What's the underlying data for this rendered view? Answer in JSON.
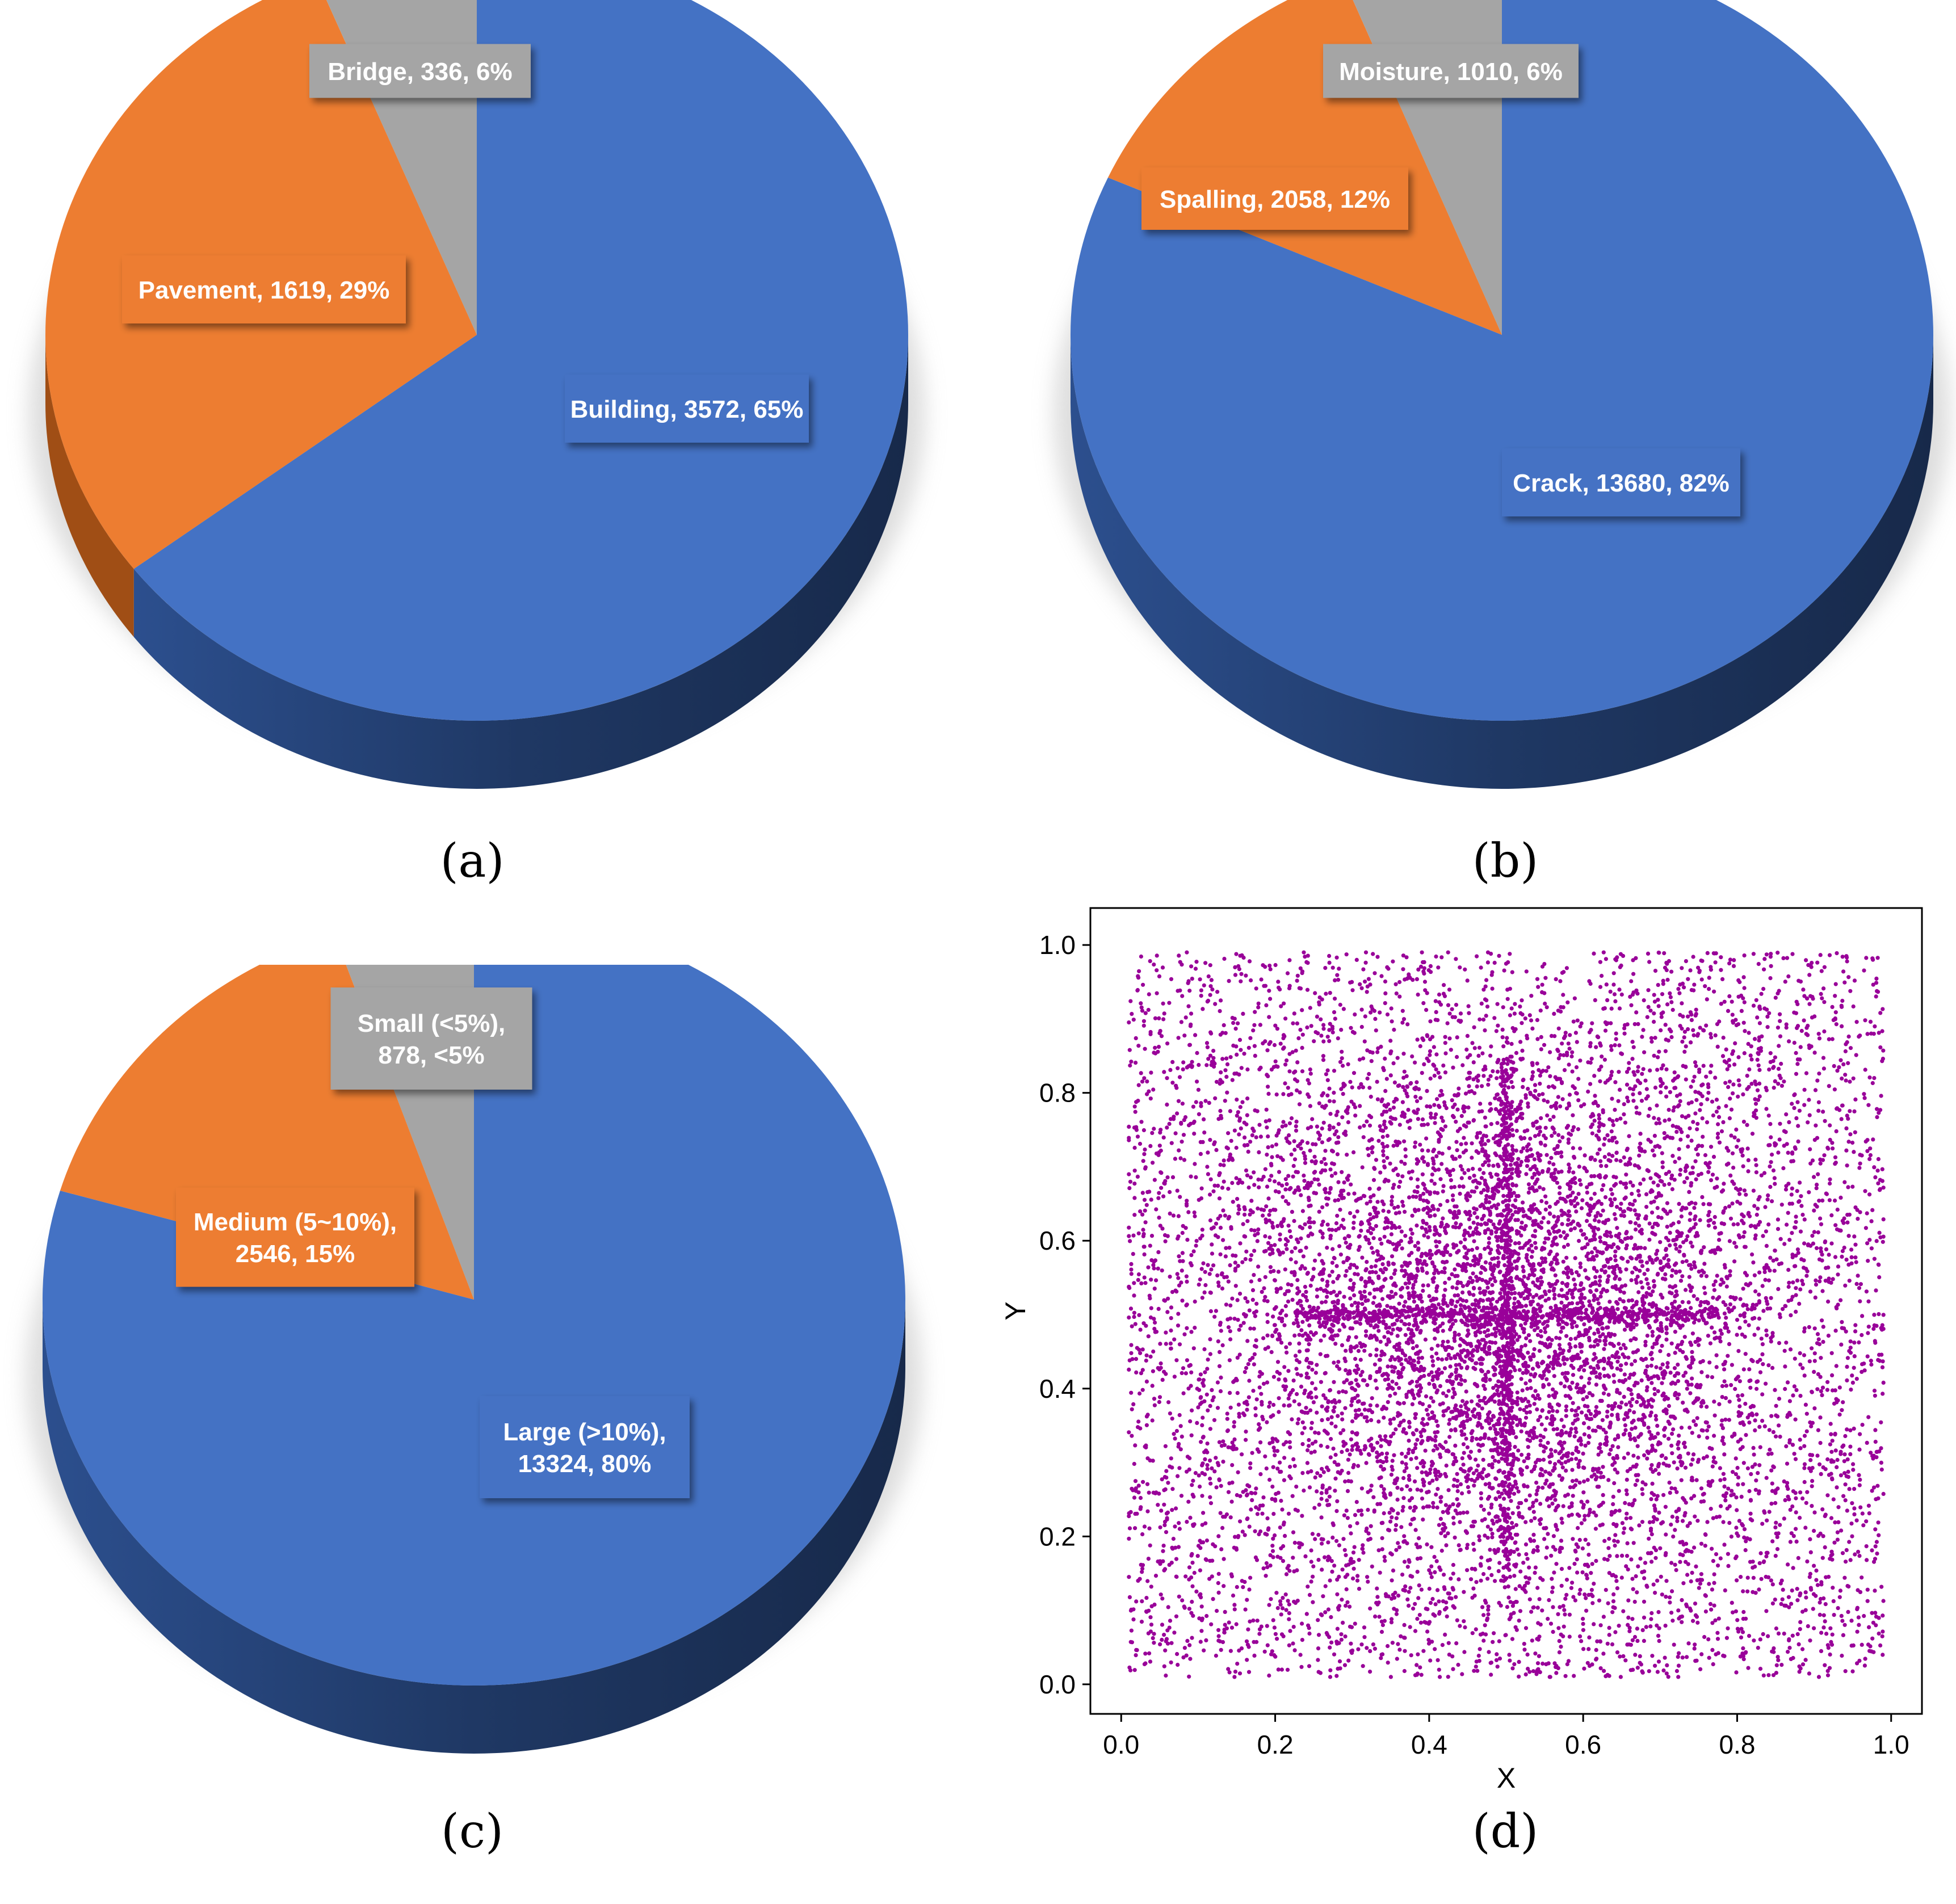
{
  "colors": {
    "blue": "#4472C4",
    "blue_side": "#1F3864",
    "orange": "#ED7D31",
    "orange_side": "#A04E15",
    "gray": "#A5A5A5",
    "scatter": "#990099"
  },
  "chart_data": [
    {
      "type": "pie",
      "caption": "(a)",
      "slices": [
        {
          "label": "Building, 3572, 65%",
          "value": 3572,
          "percent": 65,
          "color": "#4472C4"
        },
        {
          "label": "Pavement, 1619, 29%",
          "value": 1619,
          "percent": 29,
          "color": "#ED7D31"
        },
        {
          "label": "Bridge, 336, 6%",
          "value": 336,
          "percent": 6,
          "color": "#A5A5A5"
        }
      ]
    },
    {
      "type": "pie",
      "caption": "(b)",
      "slices": [
        {
          "label": "Crack, 13680, 82%",
          "value": 13680,
          "percent": 82,
          "color": "#4472C4"
        },
        {
          "label": "Spalling, 2058, 12%",
          "value": 2058,
          "percent": 12,
          "color": "#ED7D31"
        },
        {
          "label": "Moisture, 1010, 6%",
          "value": 1010,
          "percent": 6,
          "color": "#A5A5A5"
        }
      ]
    },
    {
      "type": "pie",
      "caption": "(c)",
      "slices": [
        {
          "label": "Large (>10%),\n13324, 80%",
          "value": 13324,
          "percent": 80,
          "color": "#4472C4"
        },
        {
          "label": "Medium (5~10%),\n2546, 15%",
          "value": 2546,
          "percent": 15,
          "color": "#ED7D31"
        },
        {
          "label": "Small (<5%),\n878, <5%",
          "value": 878,
          "percent": 5,
          "color": "#A5A5A5"
        }
      ]
    },
    {
      "type": "scatter",
      "caption": "(d)",
      "xlabel": "X",
      "ylabel": "Y",
      "xlim": [
        -0.04,
        1.04
      ],
      "ylim": [
        -0.04,
        1.05
      ],
      "xticks": [
        "0.0",
        "0.2",
        "0.4",
        "0.6",
        "0.8",
        "1.0"
      ],
      "yticks": [
        "0.0",
        "0.2",
        "0.4",
        "0.6",
        "0.8",
        "1.0"
      ],
      "x_range": [
        0.01,
        0.99
      ],
      "y_range": [
        0.01,
        0.99
      ],
      "cross_center": [
        0.5,
        0.5
      ],
      "approx_points": 11000,
      "color": "#990099"
    }
  ]
}
